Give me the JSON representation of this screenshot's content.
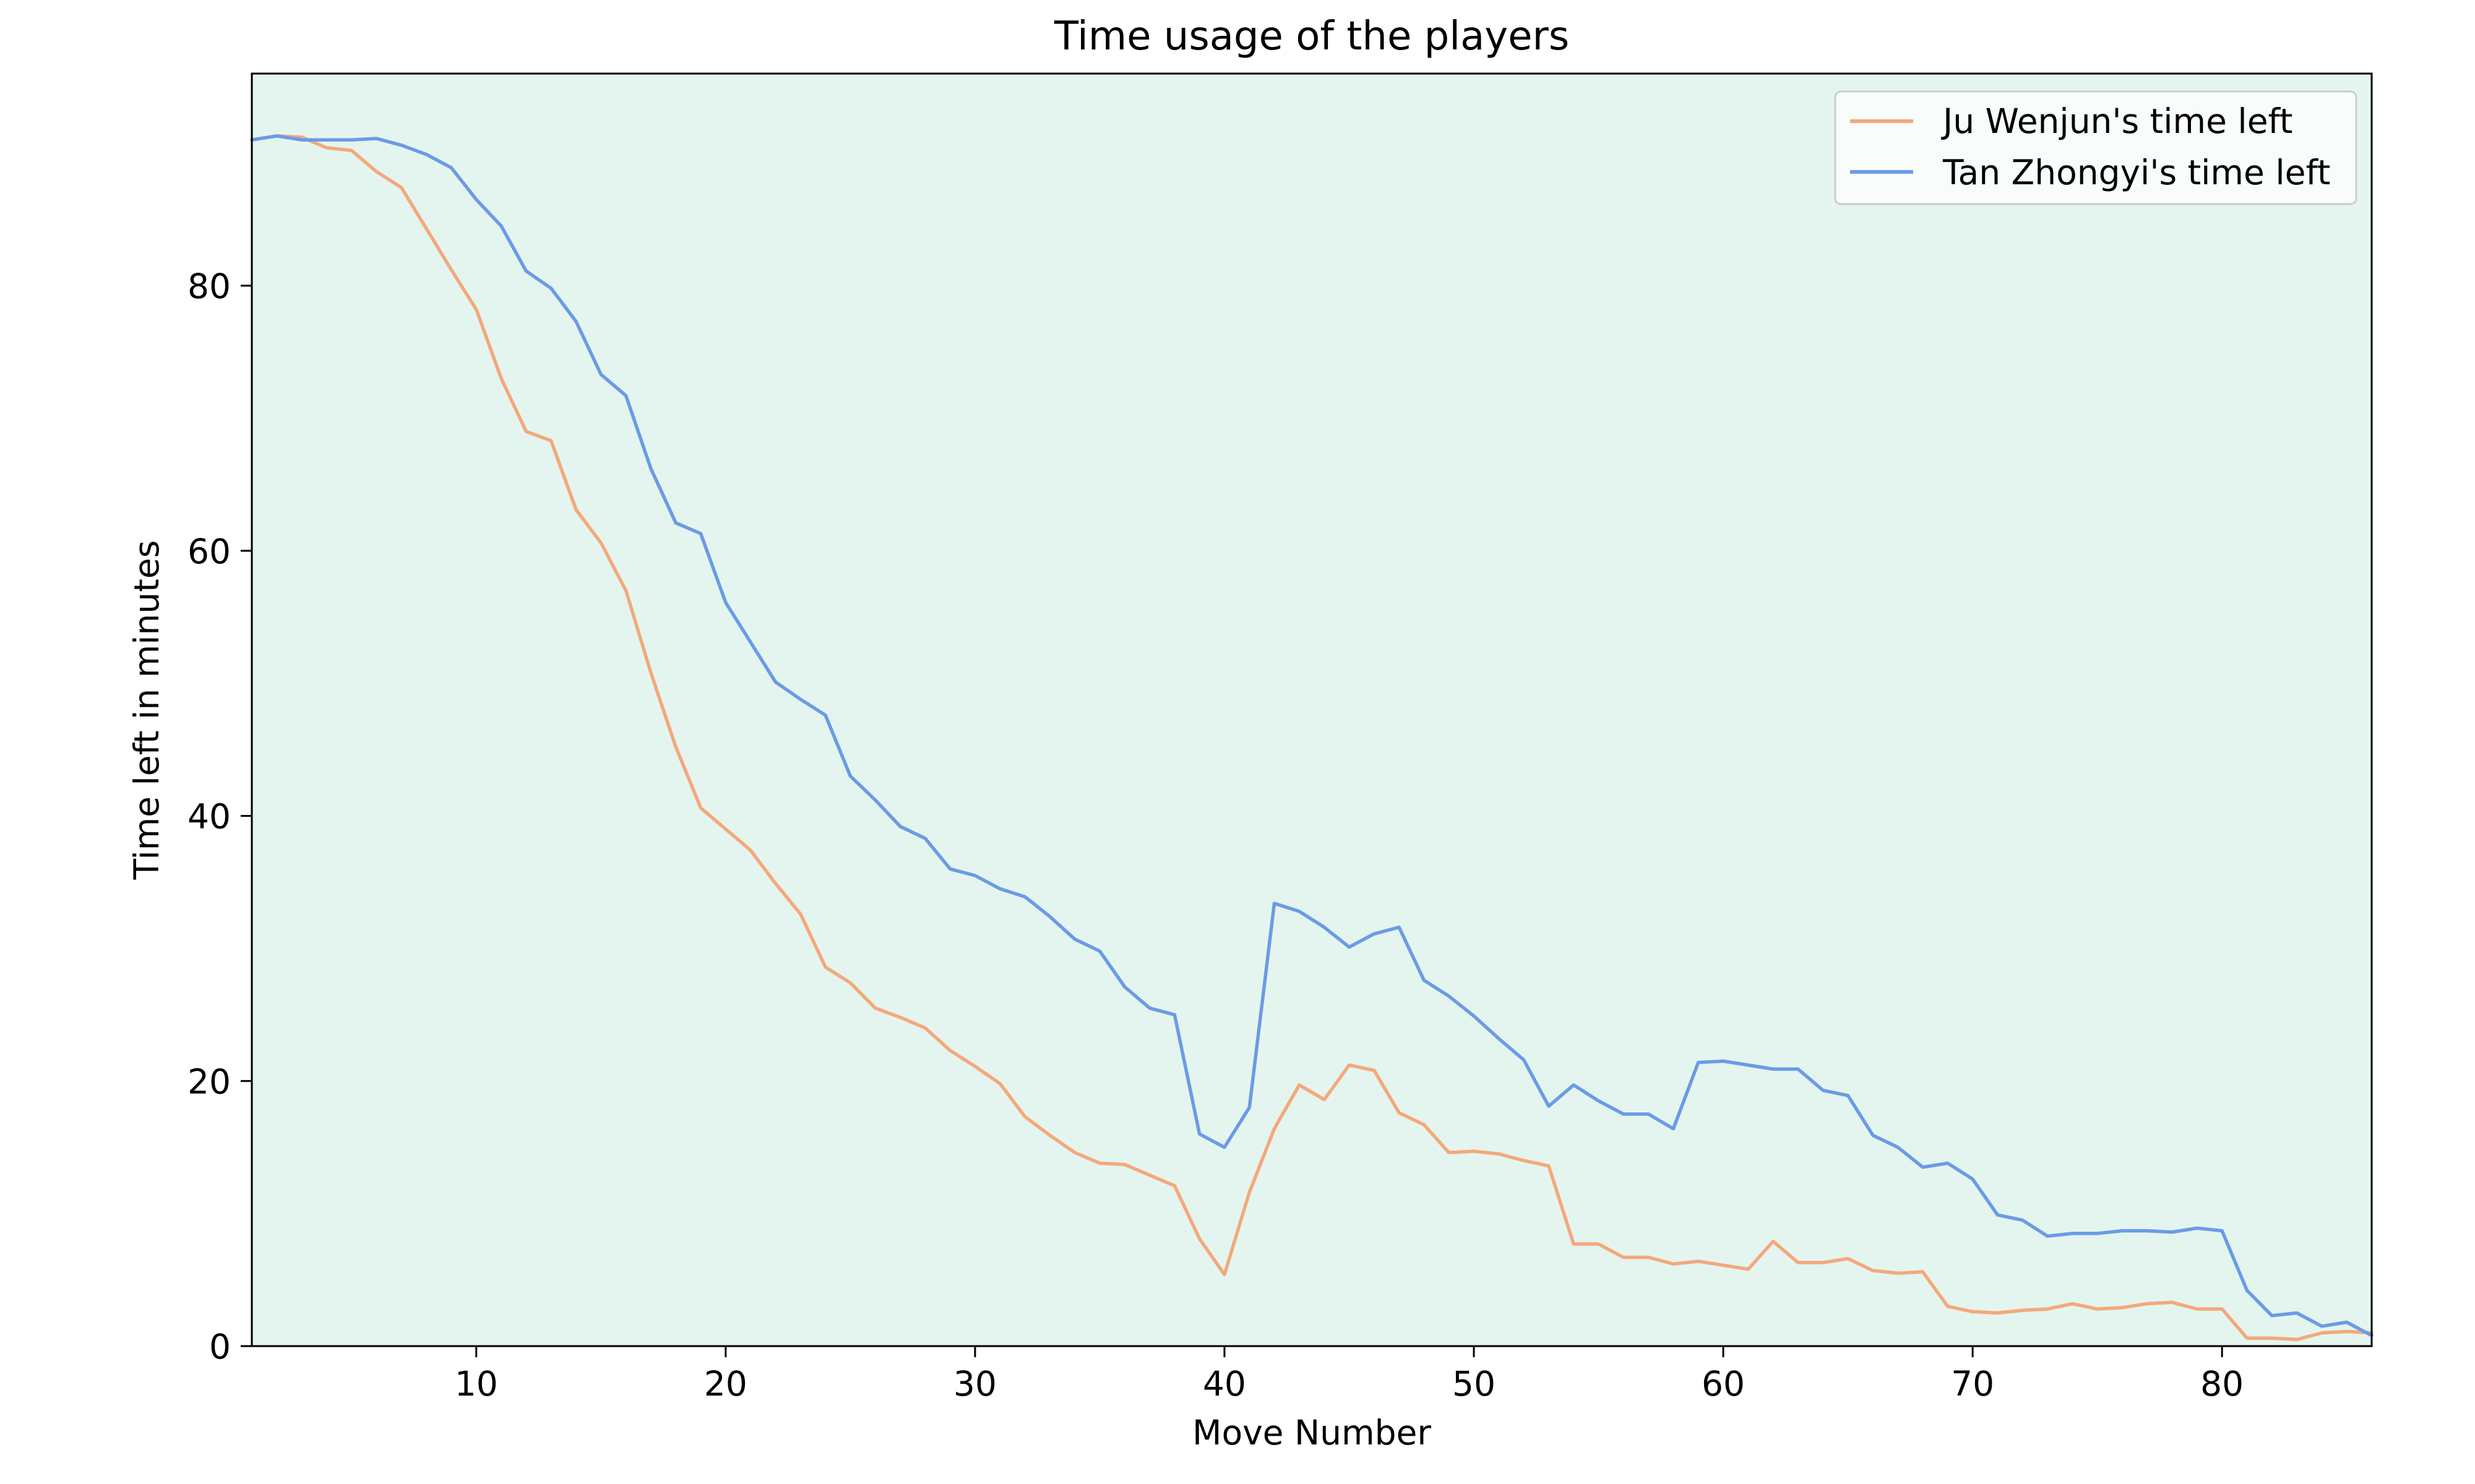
{
  "colors": {
    "background": "#ffffff",
    "plot_background": "#e4f5ef",
    "ju_wenjun": "#f4a87c",
    "tan_zhongyi": "#6b9be6",
    "legend_background": "#f8fcfb",
    "legend_border": "#cccccc"
  },
  "chart_data": {
    "type": "line",
    "title": "Time usage of the players",
    "xlabel": "Move Number",
    "ylabel": "Time left in minutes",
    "xlim": [
      1,
      86
    ],
    "ylim": [
      0,
      96
    ],
    "xticks": [
      10,
      20,
      30,
      40,
      50,
      60,
      70,
      80
    ],
    "yticks": [
      0,
      20,
      40,
      60,
      80
    ],
    "grid": false,
    "legend_position": "top-right",
    "x": [
      1,
      2,
      3,
      4,
      5,
      6,
      7,
      8,
      9,
      10,
      11,
      12,
      13,
      14,
      15,
      16,
      17,
      18,
      19,
      20,
      21,
      22,
      23,
      24,
      25,
      26,
      27,
      28,
      29,
      30,
      31,
      32,
      33,
      34,
      35,
      36,
      37,
      38,
      39,
      40,
      41,
      42,
      43,
      44,
      45,
      46,
      47,
      48,
      49,
      50,
      51,
      52,
      53,
      54,
      55,
      56,
      57,
      58,
      59,
      60,
      61,
      62,
      63,
      64,
      65,
      66,
      67,
      68,
      69,
      70,
      71,
      72,
      73,
      74,
      75,
      76,
      77,
      78,
      79,
      80,
      81,
      82,
      83,
      84,
      85,
      86
    ],
    "series": [
      {
        "name": "Ju Wenjun's time left",
        "color_key": "ju_wenjun",
        "values": [
          91.0,
          91.3,
          91.2,
          90.4,
          90.2,
          88.6,
          87.4,
          84.3,
          81.2,
          78.2,
          73.0,
          69.0,
          68.3,
          63.1,
          60.6,
          57.0,
          50.8,
          45.2,
          40.6,
          39.0,
          37.4,
          34.9,
          32.6,
          28.6,
          27.4,
          25.5,
          24.8,
          24.0,
          22.3,
          21.1,
          19.8,
          17.3,
          15.9,
          14.6,
          13.8,
          13.7,
          12.9,
          12.1,
          8.1,
          5.4,
          11.6,
          16.4,
          19.7,
          18.6,
          21.2,
          20.8,
          17.6,
          16.7,
          14.6,
          14.7,
          14.5,
          14.0,
          13.6,
          7.7,
          7.7,
          6.7,
          6.7,
          6.2,
          6.4,
          6.1,
          5.8,
          7.9,
          6.3,
          6.3,
          6.6,
          5.7,
          5.5,
          5.6,
          3.0,
          2.6,
          2.5,
          2.7,
          2.8,
          3.2,
          2.8,
          2.9,
          3.2,
          3.3,
          2.8,
          2.8,
          0.6,
          0.6,
          0.5,
          1.0,
          1.1,
          1.0
        ]
      },
      {
        "name": "Tan Zhongyi's time left",
        "color_key": "tan_zhongyi",
        "values": [
          91.0,
          91.3,
          91.0,
          91.0,
          91.0,
          91.1,
          90.6,
          89.9,
          88.9,
          86.5,
          84.5,
          81.1,
          79.8,
          77.3,
          73.3,
          71.7,
          66.2,
          62.1,
          61.3,
          56.1,
          53.1,
          50.1,
          48.8,
          47.6,
          43.0,
          41.2,
          39.2,
          38.3,
          36.0,
          35.5,
          34.5,
          33.9,
          32.4,
          30.7,
          29.8,
          27.1,
          25.5,
          25.0,
          16.0,
          15.0,
          18.0,
          33.4,
          32.8,
          31.6,
          30.1,
          31.1,
          31.6,
          27.6,
          26.4,
          24.9,
          23.2,
          21.6,
          18.1,
          19.7,
          18.5,
          17.5,
          17.5,
          16.4,
          21.4,
          21.5,
          21.2,
          20.9,
          20.9,
          19.3,
          18.9,
          15.9,
          15.0,
          13.5,
          13.8,
          12.6,
          9.9,
          9.5,
          8.3,
          8.5,
          8.5,
          8.7,
          8.7,
          8.6,
          8.9,
          8.7,
          4.2,
          2.3,
          2.5,
          1.5,
          1.8,
          0.8
        ]
      }
    ]
  }
}
